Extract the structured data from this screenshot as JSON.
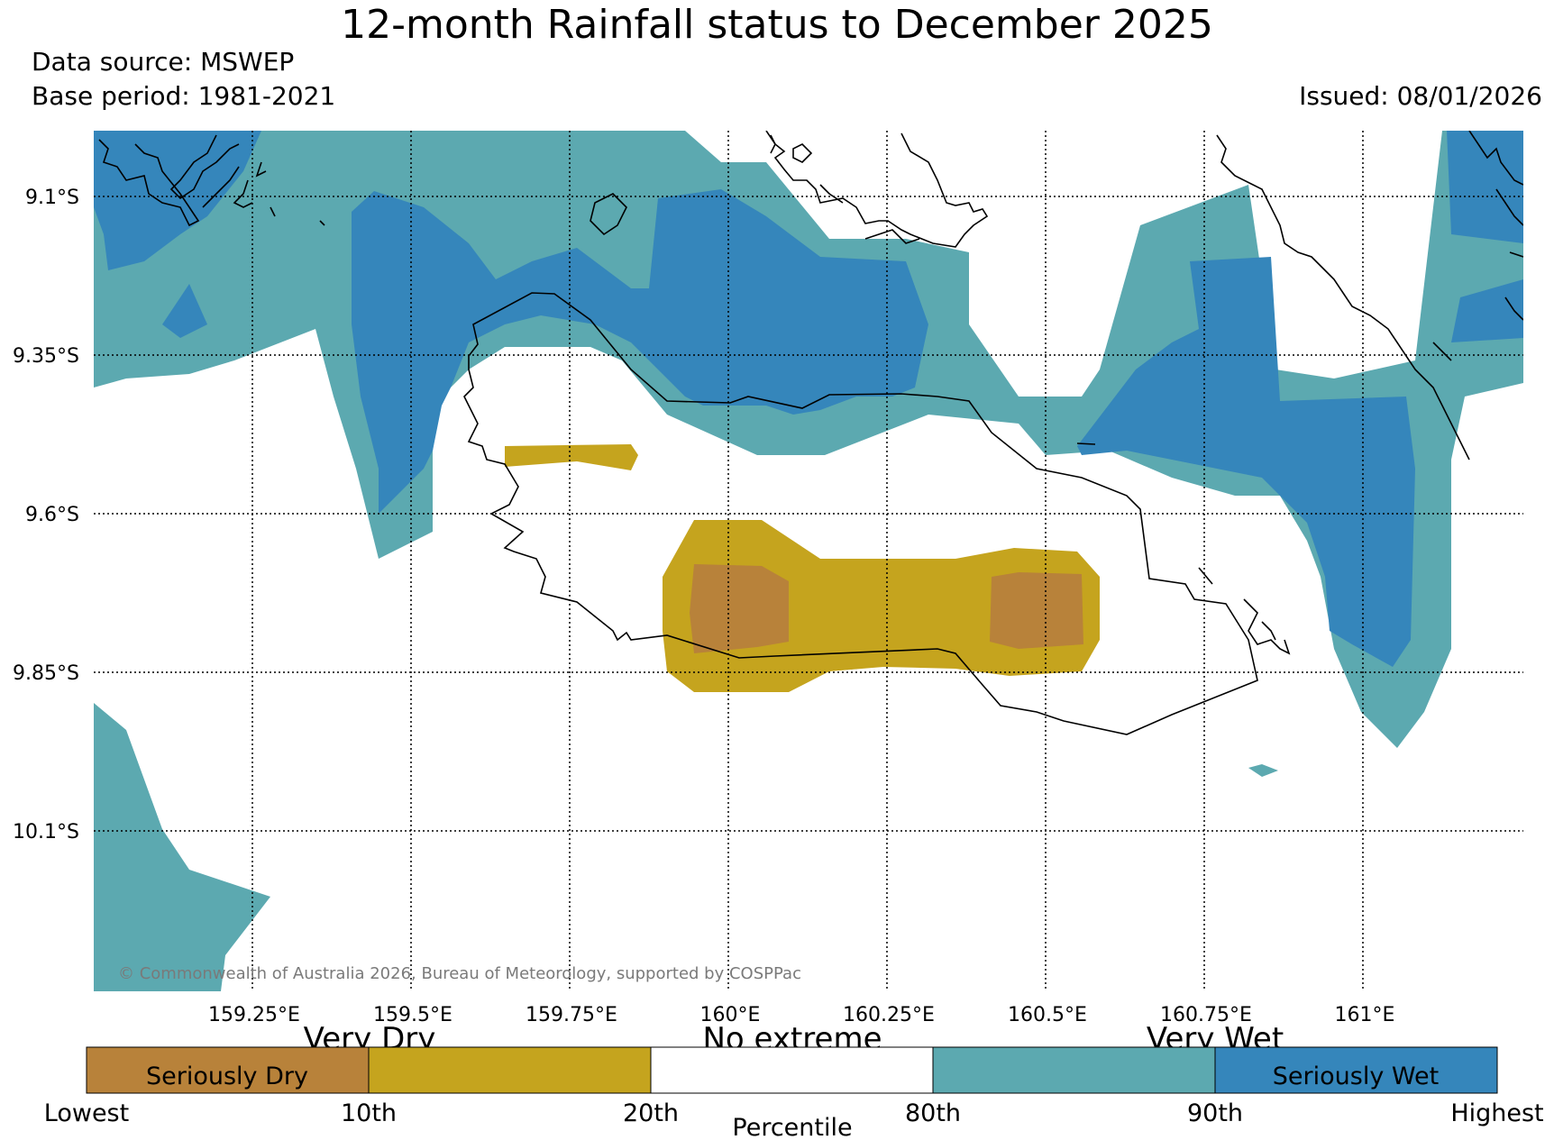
{
  "header": {
    "title": "12-month Rainfall status to December 2025",
    "data_source": "Data source: MSWEP",
    "base_period": "Base period: 1981-2021",
    "issued": "Issued: 08/01/2026"
  },
  "map": {
    "lat_labels": [
      "9.1°S",
      "9.35°S",
      "9.6°S",
      "9.85°S",
      "10.1°S"
    ],
    "lon_labels": [
      "159.25°E",
      "159.5°E",
      "159.75°E",
      "160°E",
      "160.25°E",
      "160.5°E",
      "160.75°E",
      "161°E"
    ],
    "copyright": "© Commonwealth of Australia 2026, Bureau of Meteorology, supported by COSPPac"
  },
  "legend": {
    "headings": [
      "Very Dry",
      "No extreme",
      "Very Wet"
    ],
    "categories": [
      {
        "label": "Seriously Dry",
        "color": "#b8823a"
      },
      {
        "label": "",
        "color": "#c5a41e"
      },
      {
        "label": "",
        "color": "#ffffff"
      },
      {
        "label": "",
        "color": "#5ca9b0"
      },
      {
        "label": "Seriously Wet",
        "color": "#3586bb"
      }
    ],
    "ticks": [
      "Lowest",
      "10th",
      "20th",
      "80th",
      "90th",
      "Highest"
    ],
    "axis_label": "Percentile"
  },
  "colors": {
    "very_wet": "#5ca9b0",
    "seriously_wet": "#3586bb",
    "very_dry": "#c5a41e",
    "seriously_dry": "#b8823a"
  }
}
